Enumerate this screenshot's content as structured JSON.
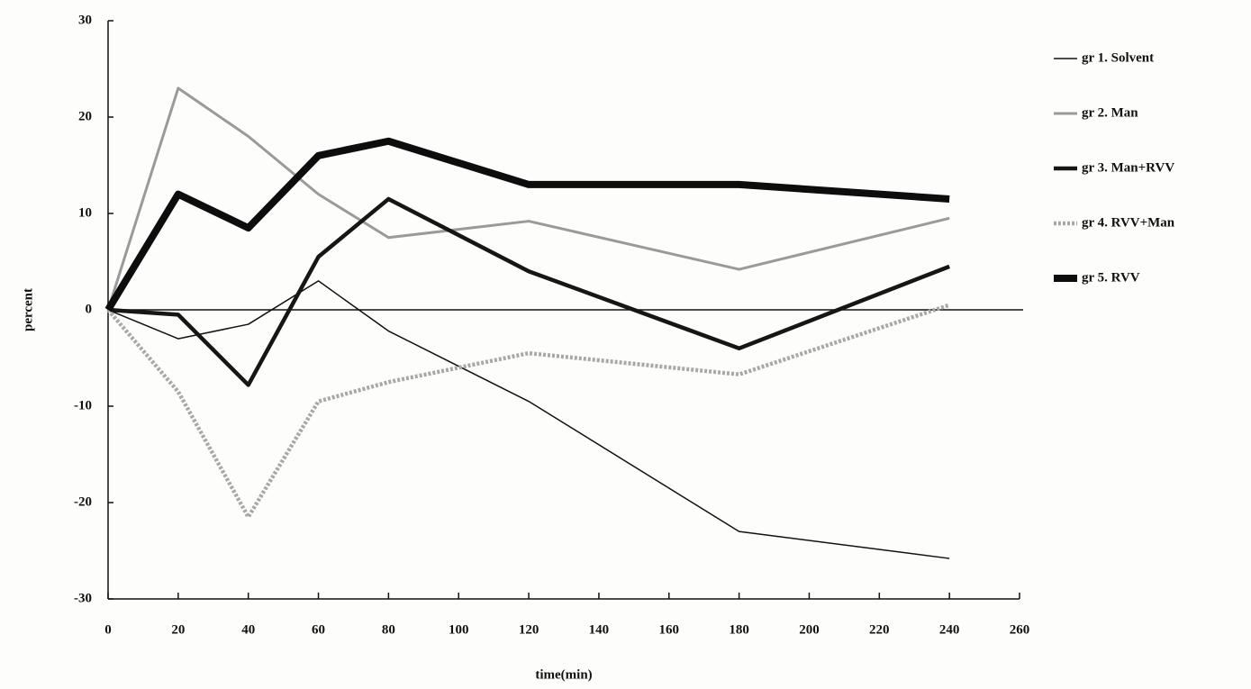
{
  "chart_data": {
    "type": "line",
    "x_label": "time(min)",
    "y_label": "percent",
    "x": [
      0,
      20,
      40,
      60,
      80,
      120,
      180,
      240
    ],
    "series": [
      {
        "name": "gr 1. Solvent",
        "color": "#111111",
        "line_width": 1.5,
        "values": [
          0,
          -3,
          -1.5,
          3,
          -2.2,
          -9.5,
          -23,
          -25.8
        ]
      },
      {
        "name": "gr 2. Man",
        "color": "#9a9a9a",
        "line_width": 3,
        "values": [
          0,
          23,
          18,
          12,
          7.5,
          9.2,
          4.2,
          9.5
        ]
      },
      {
        "name": "gr 3. Man+RVV",
        "color": "#161616",
        "line_width": 4.5,
        "values": [
          0,
          -0.5,
          -7.8,
          5.5,
          11.5,
          4,
          -4,
          4.5
        ]
      },
      {
        "name": "gr 4. RVV+Man",
        "color": "#a8a8a8",
        "line_width": 4.5,
        "dashed": true,
        "values": [
          0,
          -8.5,
          -21.5,
          -9.5,
          -7.5,
          -4.5,
          -6.7,
          0.5
        ]
      },
      {
        "name": "gr 5. RVV",
        "color": "#0d0d0d",
        "line_width": 8,
        "values": [
          0,
          12,
          8.5,
          16,
          17.5,
          13,
          13,
          11.5
        ]
      }
    ],
    "xlim": [
      0,
      260
    ],
    "xticks": [
      0,
      20,
      40,
      60,
      80,
      100,
      120,
      140,
      160,
      180,
      200,
      220,
      240,
      260
    ],
    "ylim": [
      -30,
      30
    ],
    "yticks": [
      -30,
      -20,
      -10,
      0,
      10,
      20,
      30
    ],
    "zero_line": true,
    "legend": "right"
  }
}
